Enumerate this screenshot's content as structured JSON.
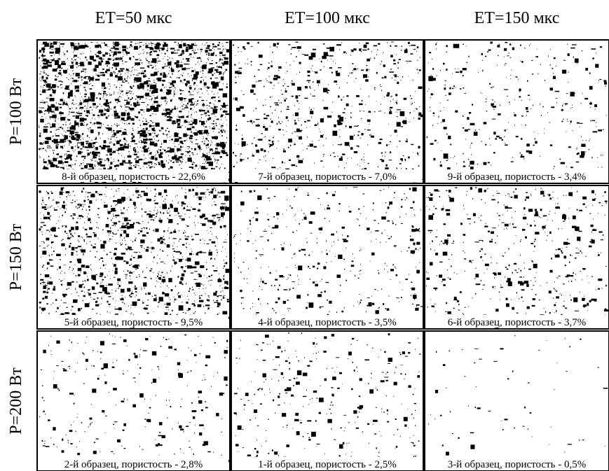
{
  "columns": [
    "ET=50 мкс",
    "ET=100 мкс",
    "ET=150 мкс"
  ],
  "rows": [
    "P=100 Вт",
    "P=150 Вт",
    "P=200 Вт"
  ],
  "panels": [
    [
      "8-й образец, пористость - 22,6%",
      "7-й образец, пористость - 7,0%",
      "9-й образец, пористость - 3,4%"
    ],
    [
      "5-й образец, пористость - 9,5%",
      "4-й образец, пористость - 3,5%",
      "6-й образец, пористость - 3,7%"
    ],
    [
      "2-й образец, пористость - 2,8%",
      "1-й образец, пористость - 2,5%",
      "3-й образец, пористость - 0,5%"
    ]
  ]
}
